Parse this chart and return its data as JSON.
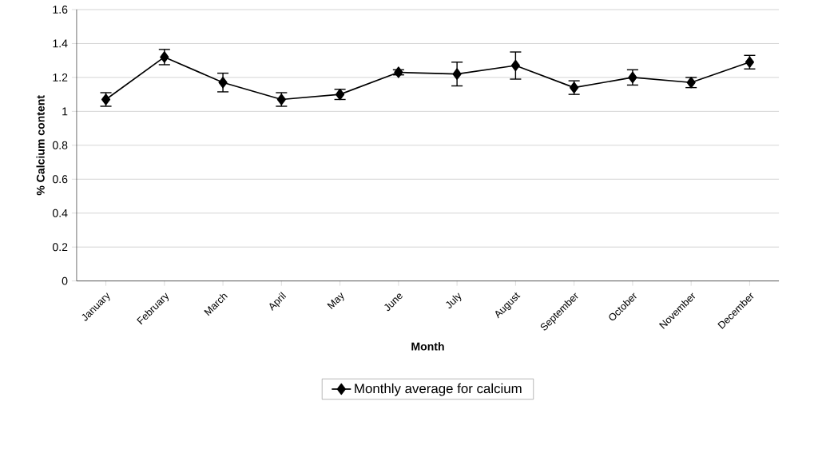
{
  "chart_data": {
    "type": "line",
    "xlabel": "Month",
    "ylabel": "% Calcium content",
    "categories": [
      "January",
      "February",
      "March",
      "April",
      "May",
      "June",
      "July",
      "August",
      "September",
      "October",
      "November",
      "December"
    ],
    "series": [
      {
        "name": "Monthly average for calcium",
        "color": "#000000",
        "values": [
          1.07,
          1.32,
          1.17,
          1.07,
          1.1,
          1.23,
          1.22,
          1.27,
          1.14,
          1.2,
          1.17,
          1.29
        ],
        "errors": [
          0.04,
          0.045,
          0.055,
          0.04,
          0.03,
          0.015,
          0.07,
          0.08,
          0.04,
          0.045,
          0.03,
          0.04
        ]
      }
    ],
    "ylim": [
      0,
      1.6
    ],
    "yticks": [
      0,
      0.2,
      0.4,
      0.6,
      0.8,
      1,
      1.2,
      1.4,
      1.6
    ],
    "grid": "y",
    "legend": "bottom",
    "marker": "diamond",
    "line_style": "solid"
  }
}
